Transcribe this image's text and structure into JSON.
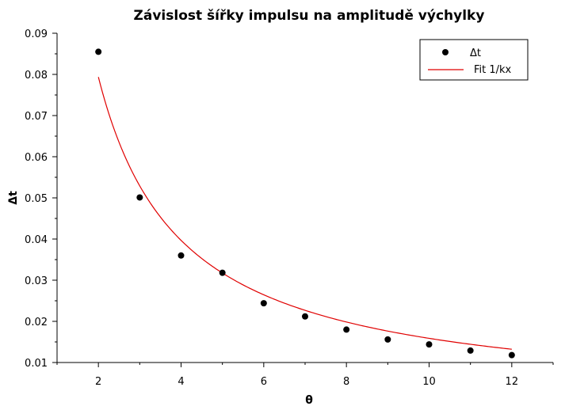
{
  "chart_data": {
    "type": "scatter",
    "title": "Závislost šířky impulsu na amplitudě výchylky",
    "xlabel": "θ",
    "ylabel": "Δt",
    "xlim": [
      1,
      13
    ],
    "ylim": [
      0.01,
      0.09
    ],
    "xticks": [
      2,
      4,
      6,
      8,
      10,
      12
    ],
    "yticks": [
      "0.01",
      "0.02",
      "0.03",
      "0.04",
      "0.05",
      "0.06",
      "0.07",
      "0.08",
      "0.09"
    ],
    "grid": false,
    "legend_position": "top-right",
    "series": [
      {
        "name": "Δt",
        "kind": "scatter",
        "color": "#000000",
        "points": [
          [
            2,
            0.0855
          ],
          [
            3,
            0.0501
          ],
          [
            4,
            0.036
          ],
          [
            5,
            0.0318
          ],
          [
            6,
            0.0244
          ],
          [
            7,
            0.0212
          ],
          [
            8,
            0.018
          ],
          [
            9,
            0.0156
          ],
          [
            10,
            0.0144
          ],
          [
            11,
            0.0129
          ],
          [
            12,
            0.0118
          ]
        ]
      },
      {
        "name": "Fit 1/kx",
        "kind": "line",
        "color": "#e00000",
        "function": "1/(k*x)",
        "k": 6.3,
        "x_range": [
          2,
          12
        ]
      }
    ]
  }
}
